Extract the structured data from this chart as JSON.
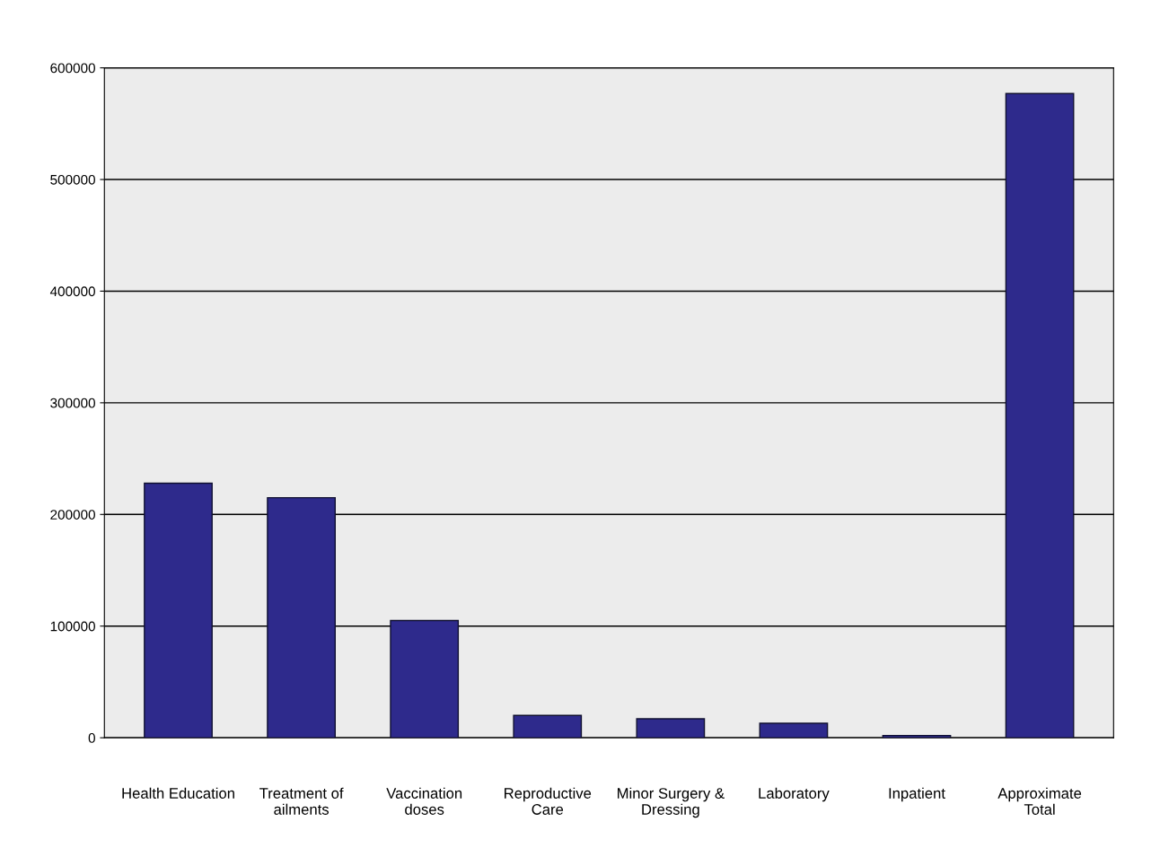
{
  "chart_data": {
    "type": "bar",
    "categories": [
      "Health Education",
      "Treatment of\nailments",
      "Vaccination\ndoses",
      "Reproductive\nCare",
      "Minor Surgery &\nDressing",
      "Laboratory",
      "Inpatient",
      "Approximate\nTotal"
    ],
    "values": [
      228000,
      215000,
      105000,
      20000,
      17000,
      13000,
      2000,
      577000
    ],
    "color": "#2e2a8c",
    "ylim": [
      0,
      600000
    ],
    "yticks": [
      0,
      100000,
      200000,
      300000,
      400000,
      500000,
      600000
    ],
    "grid": "y"
  }
}
